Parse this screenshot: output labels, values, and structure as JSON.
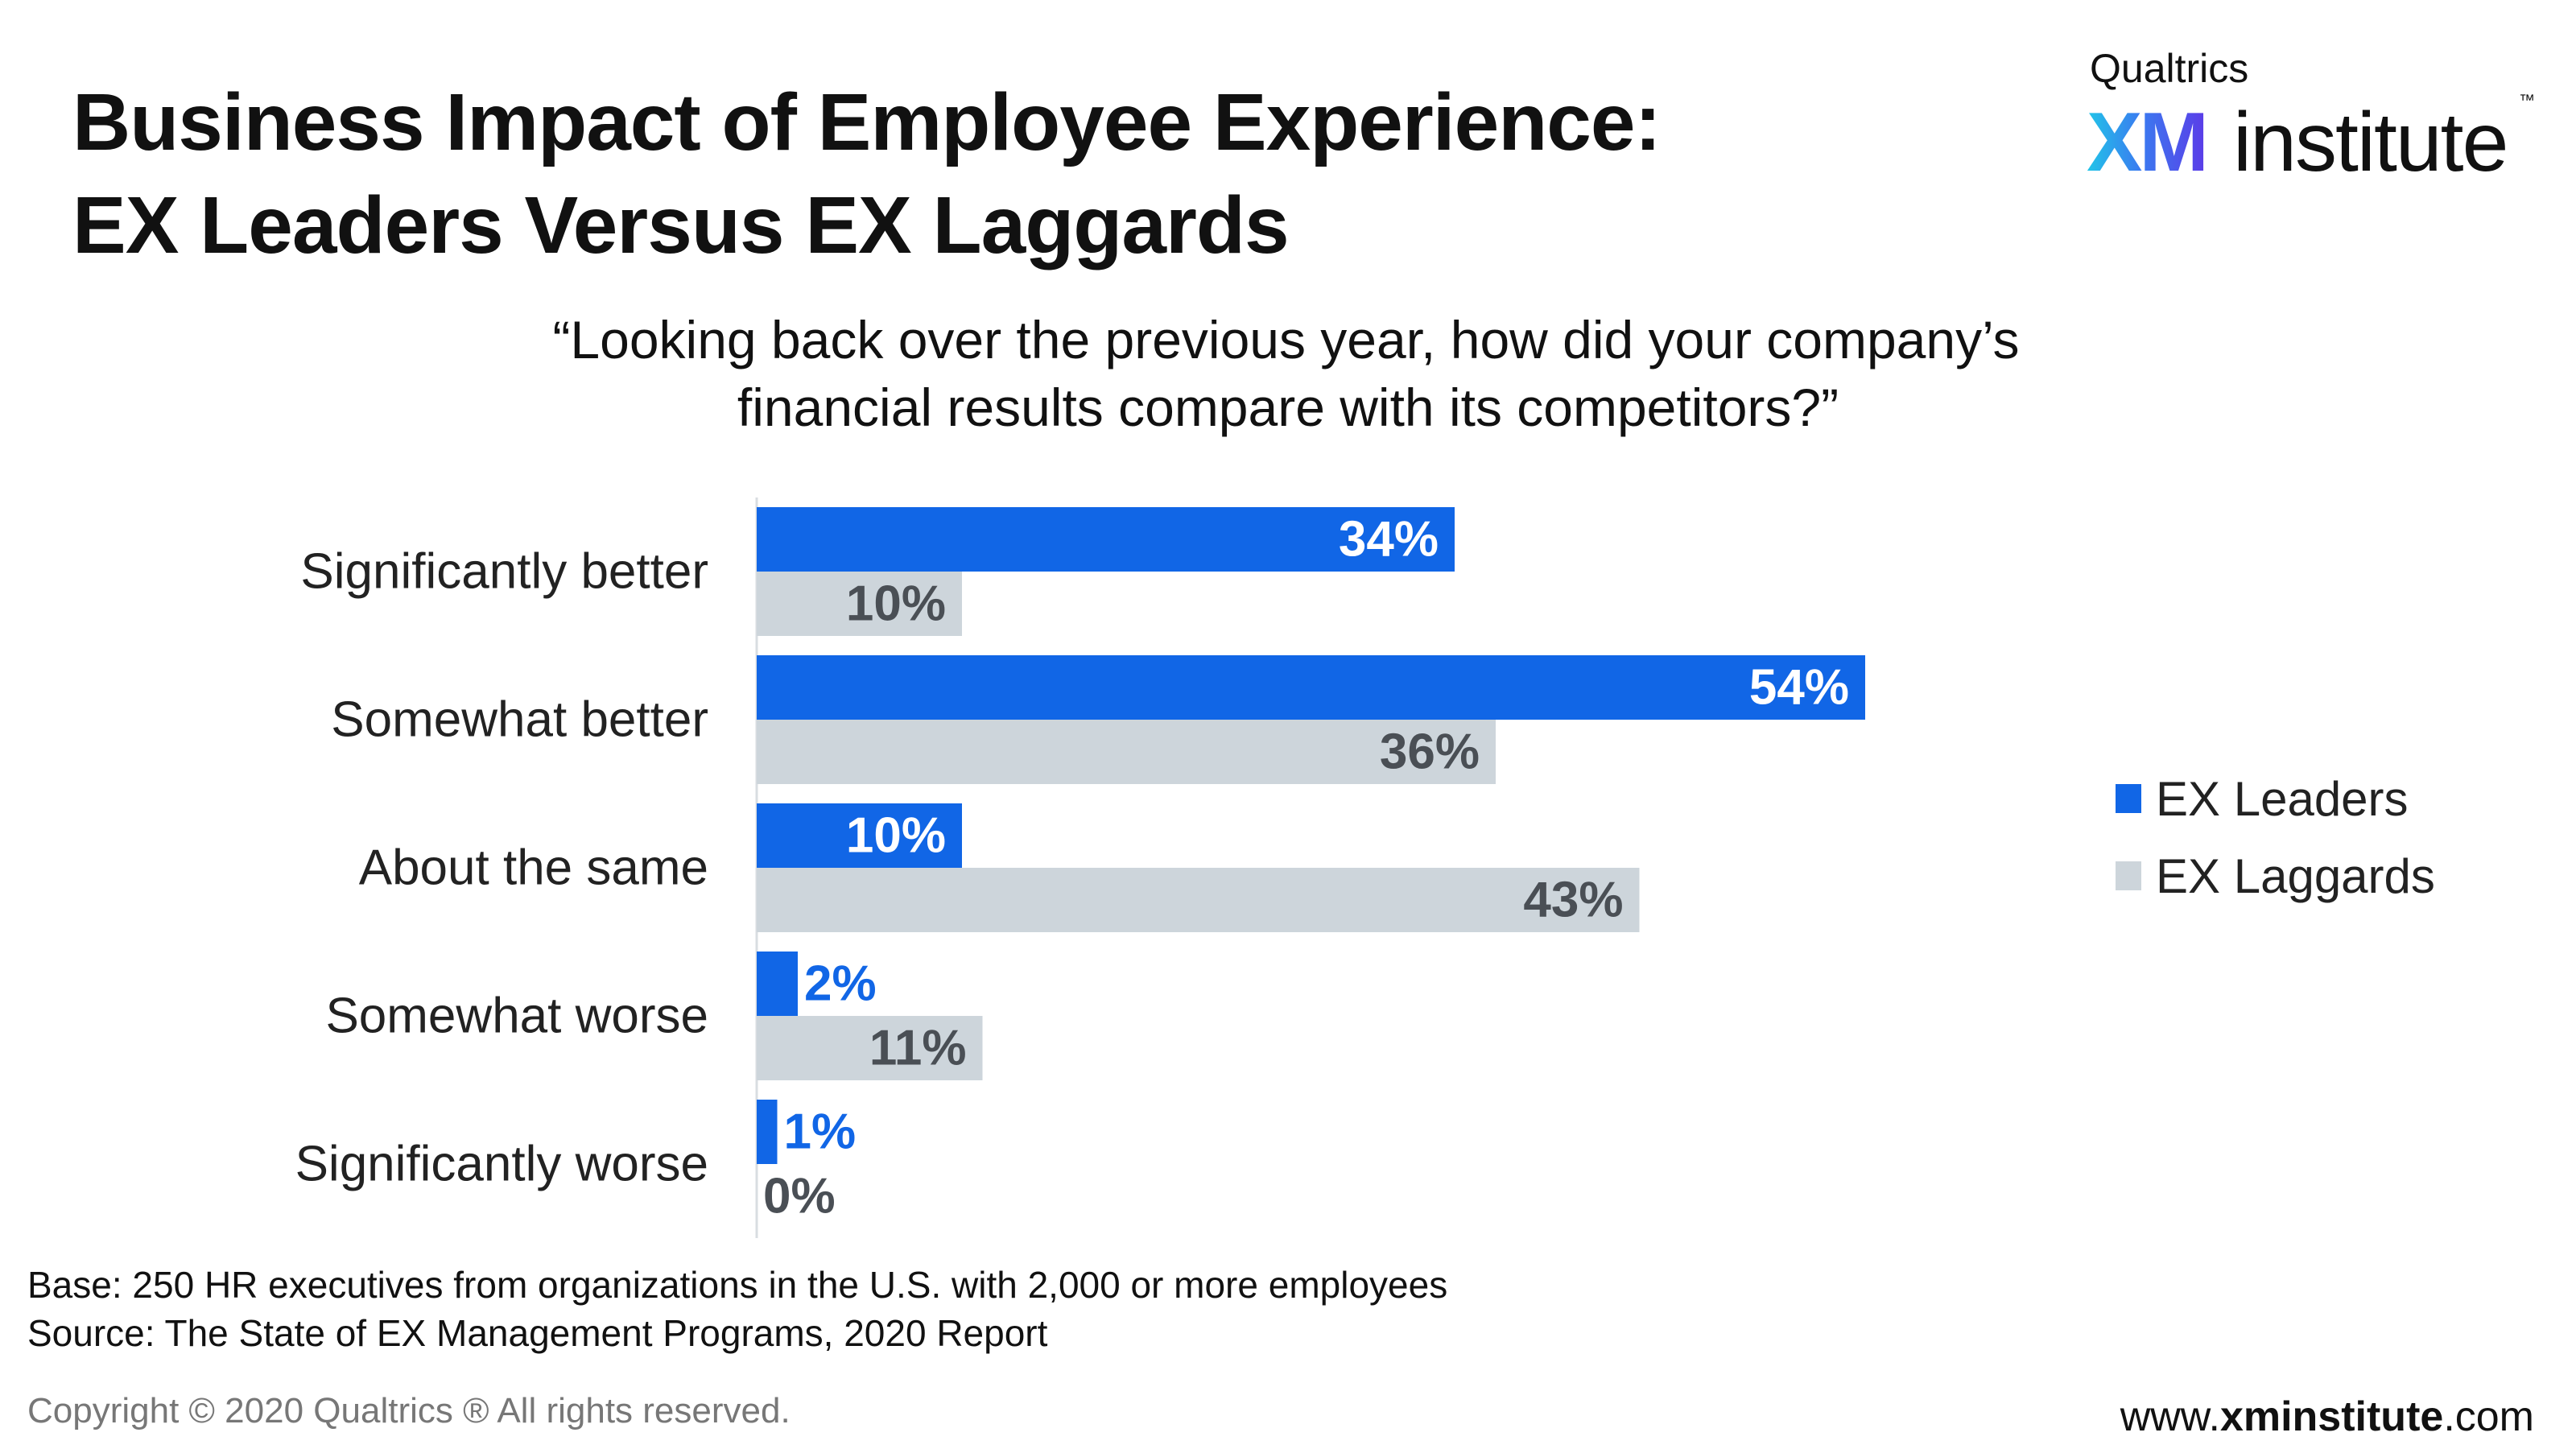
{
  "title": {
    "line1": "Business Impact of Employee Experience:",
    "line2": "EX Leaders Versus EX Laggards"
  },
  "logo": {
    "brand": "Qualtrics",
    "xm": "XM",
    "institute": "institute",
    "tm": "™"
  },
  "question": {
    "line1": "“Looking back over the previous year, how did your company’s",
    "line2": "financial results compare with its competitors?”"
  },
  "chart_data": {
    "type": "bar",
    "orientation": "horizontal",
    "categories": [
      "Significantly better",
      "Somewhat better",
      "About the same",
      "Somewhat worse",
      "Significantly worse"
    ],
    "series": [
      {
        "name": "EX Leaders",
        "values": [
          34,
          54,
          10,
          2,
          1
        ],
        "color": "#1166e6",
        "label_color_inside": "#ffffff",
        "label_color_outside": "#1166e6"
      },
      {
        "name": "EX Laggards",
        "values": [
          10,
          36,
          43,
          11,
          0
        ],
        "color": "#cdd5db",
        "label_color_inside": "#4a4f55",
        "label_color_outside": "#4a4f55"
      }
    ],
    "value_suffix": "%",
    "xlim": [
      0,
      100
    ],
    "grid": false,
    "legend_position": "right"
  },
  "notes": {
    "base": "Base: 250 HR executives from organizations in the U.S. with 2,000 or more employees",
    "source": "Source: The State of EX Management Programs, 2020 Report"
  },
  "footer": {
    "copyright": "Copyright © 2020 Qualtrics ® All rights reserved.",
    "website_pre": "www.",
    "website_bold": "xminstitute",
    "website_post": ".com"
  }
}
